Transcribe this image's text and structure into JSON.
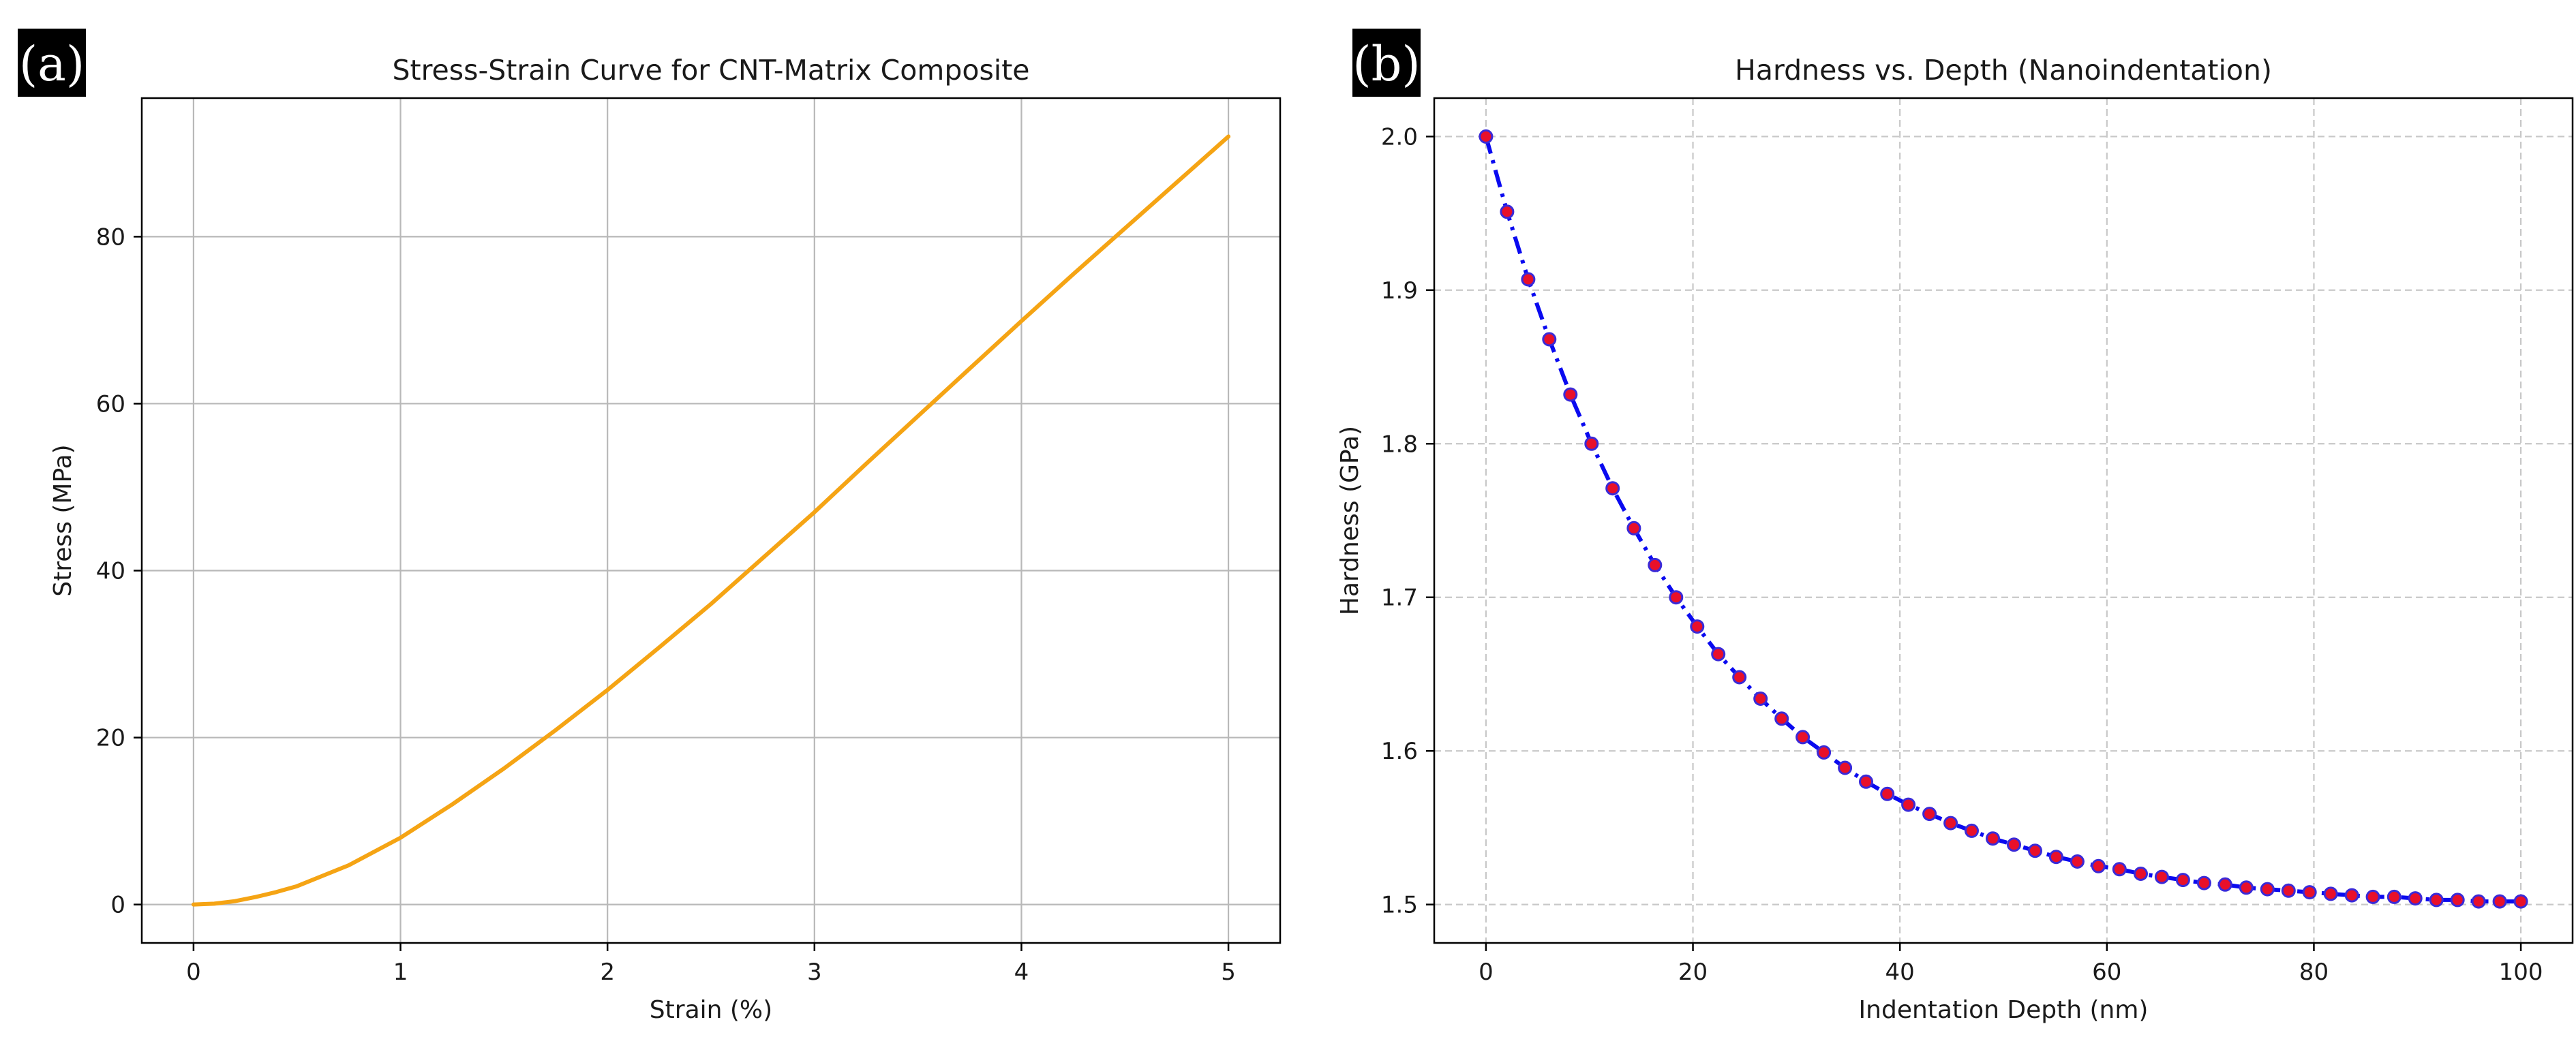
{
  "panels": [
    {
      "tag": "(a)"
    },
    {
      "tag": "(b)"
    }
  ],
  "chart_data": [
    {
      "type": "line",
      "title": "Stress-Strain Curve for CNT-Matrix Composite",
      "xlabel": "Strain (%)",
      "ylabel": "Stress (MPa)",
      "xlim": [
        -0.25,
        5.25
      ],
      "ylim": [
        -4.6,
        96.6
      ],
      "xticks": [
        0,
        1,
        2,
        3,
        4,
        5
      ],
      "yticks": [
        0,
        20,
        40,
        60,
        80
      ],
      "grid": true,
      "grid_style": "solid",
      "series": [
        {
          "color": "#f5a414",
          "x": [
            0,
            0.1,
            0.2,
            0.3,
            0.4,
            0.5,
            0.75,
            1.0,
            1.25,
            1.5,
            1.75,
            2.0,
            2.25,
            2.5,
            2.75,
            3.0,
            3.25,
            3.5,
            3.75,
            4.0,
            4.25,
            4.5,
            4.75,
            5.0
          ],
          "y": [
            0,
            0.1,
            0.4,
            0.9,
            1.5,
            2.2,
            4.7,
            8.0,
            12.0,
            16.3,
            20.9,
            25.7,
            30.8,
            36.0,
            41.5,
            47.0,
            52.8,
            58.5,
            64.2,
            69.9,
            75.5,
            81.0,
            86.5,
            92.0
          ]
        }
      ]
    },
    {
      "type": "line",
      "title": "Hardness vs. Depth (Nanoindentation)",
      "xlabel": "Indentation Depth (nm)",
      "ylabel": "Hardness (GPa)",
      "xlim": [
        -5,
        105
      ],
      "ylim": [
        1.475,
        2.025
      ],
      "xticks": [
        0,
        20,
        40,
        60,
        80,
        100
      ],
      "yticks": [
        1.5,
        1.6,
        1.7,
        1.8,
        1.9,
        2.0
      ],
      "ytick_labels": [
        "1.5",
        "1.6",
        "1.7",
        "1.8",
        "1.9",
        "2.0"
      ],
      "grid": true,
      "grid_style": "dashed",
      "series": [
        {
          "line_color": "#0a0af0",
          "line_style": "dash-dot",
          "marker": "circle",
          "marker_fill": "#e8102a",
          "marker_edge": "#3a2ad8",
          "x": [
            0,
            2.04,
            4.08,
            6.12,
            8.16,
            10.2,
            12.24,
            14.29,
            16.33,
            18.37,
            20.41,
            22.45,
            24.49,
            26.53,
            28.57,
            30.61,
            32.65,
            34.69,
            36.73,
            38.78,
            40.82,
            42.86,
            44.9,
            46.94,
            48.98,
            51.02,
            53.06,
            55.1,
            57.14,
            59.18,
            61.22,
            63.27,
            65.31,
            67.35,
            69.39,
            71.43,
            73.47,
            75.51,
            77.55,
            79.59,
            81.63,
            83.67,
            85.71,
            87.76,
            89.8,
            91.84,
            93.88,
            95.92,
            97.96,
            100
          ],
          "y": [
            2.0,
            1.951,
            1.907,
            1.868,
            1.832,
            1.8,
            1.771,
            1.745,
            1.721,
            1.7,
            1.681,
            1.663,
            1.648,
            1.634,
            1.621,
            1.609,
            1.599,
            1.589,
            1.58,
            1.572,
            1.565,
            1.559,
            1.553,
            1.548,
            1.543,
            1.539,
            1.535,
            1.531,
            1.528,
            1.525,
            1.523,
            1.52,
            1.518,
            1.516,
            1.514,
            1.513,
            1.511,
            1.51,
            1.509,
            1.508,
            1.507,
            1.506,
            1.505,
            1.505,
            1.504,
            1.503,
            1.503,
            1.502,
            1.502,
            1.502
          ]
        }
      ]
    }
  ]
}
